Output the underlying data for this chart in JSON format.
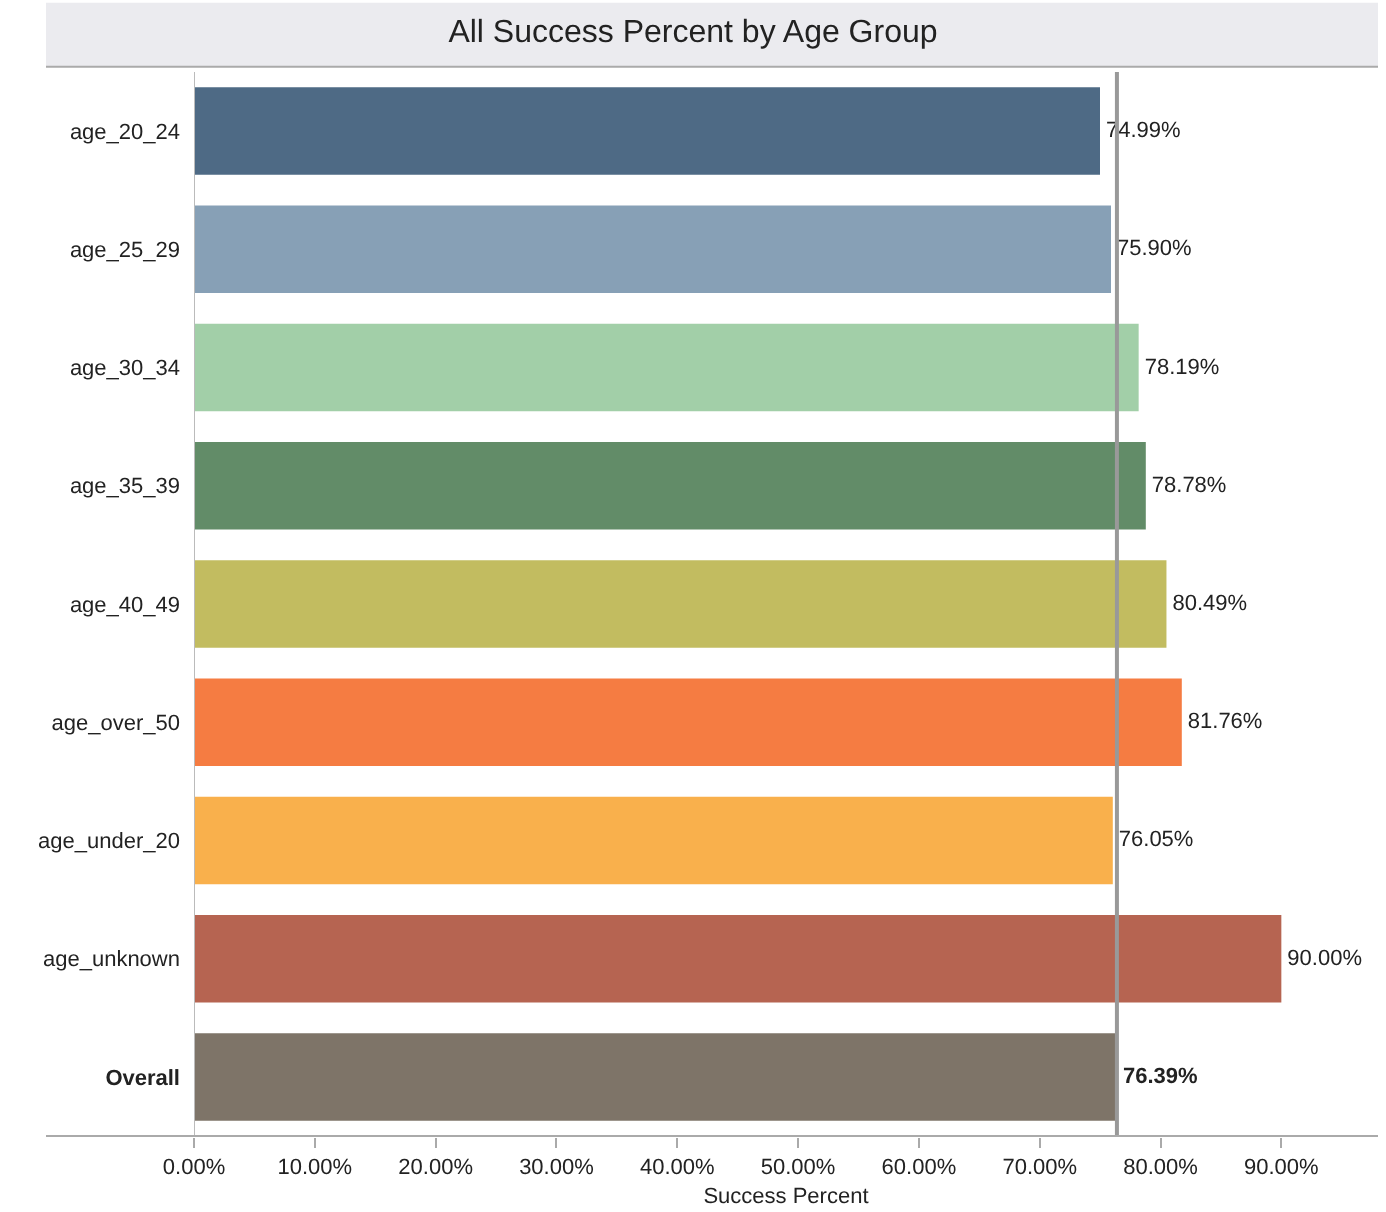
{
  "chart_data": {
    "type": "bar",
    "orientation": "horizontal",
    "title": "All Success Percent by Age Group",
    "xlabel": "Success Percent",
    "categories": [
      "age_20_24",
      "age_25_29",
      "age_30_34",
      "age_35_39",
      "age_40_49",
      "age_over_50",
      "age_under_20",
      "age_unknown",
      "Overall"
    ],
    "values": [
      74.99,
      75.9,
      78.19,
      78.78,
      80.49,
      81.76,
      76.05,
      90.0,
      76.39
    ],
    "colors": [
      "#4e6a85",
      "#87a0b6",
      "#a2cfa8",
      "#628c68",
      "#c2bc60",
      "#f57c42",
      "#f9b04c",
      "#b66451",
      "#7e7468"
    ],
    "value_labels": [
      "74.99%",
      "75.90%",
      "78.19%",
      "78.78%",
      "80.49%",
      "81.76%",
      "76.05%",
      "90.00%",
      "76.39%"
    ],
    "xlim": [
      0,
      98
    ],
    "xticks": [
      {
        "value": 0,
        "label": "0.00%"
      },
      {
        "value": 10,
        "label": "10.00%"
      },
      {
        "value": 20,
        "label": "20.00%"
      },
      {
        "value": 30,
        "label": "30.00%"
      },
      {
        "value": 40,
        "label": "40.00%"
      },
      {
        "value": 50,
        "label": "50.00%"
      },
      {
        "value": 60,
        "label": "60.00%"
      },
      {
        "value": 70,
        "label": "70.00%"
      },
      {
        "value": 80,
        "label": "80.00%"
      },
      {
        "value": 90,
        "label": "90.00%"
      }
    ],
    "ref_lines": [
      {
        "axis": "x",
        "value": 76.39,
        "color": "#999999"
      }
    ]
  }
}
